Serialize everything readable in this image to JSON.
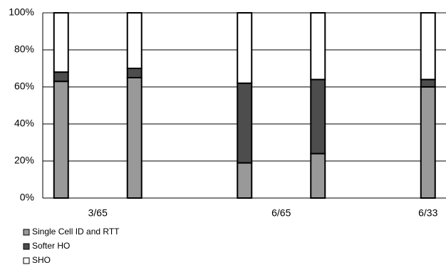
{
  "chart_data": {
    "type": "stacked_bar",
    "categories": [
      null,
      "3/65",
      null,
      null,
      null,
      null,
      "6/65",
      null,
      null,
      null,
      "6/33"
    ],
    "series": [
      {
        "name": "Single Cell ID and RTT",
        "color": "#999999",
        "values": [
          63,
          null,
          65,
          null,
          null,
          19,
          null,
          24,
          null,
          null,
          60
        ]
      },
      {
        "name": "Softer HO",
        "color": "#4d4d4d",
        "values": [
          5,
          null,
          5,
          null,
          null,
          43,
          null,
          40,
          null,
          null,
          4
        ]
      },
      {
        "name": "SHO",
        "color": "#ffffff",
        "values": [
          32,
          null,
          30,
          null,
          null,
          38,
          null,
          36,
          null,
          null,
          36
        ]
      }
    ],
    "ylim": [
      0,
      100
    ],
    "yticks": [
      {
        "value": 0,
        "label": "0%"
      },
      {
        "value": 20,
        "label": "20%"
      },
      {
        "value": 40,
        "label": "40%"
      },
      {
        "value": 60,
        "label": "60%"
      },
      {
        "value": 80,
        "label": "80%"
      },
      {
        "value": 100,
        "label": "100%"
      }
    ],
    "grid": true,
    "legend": "bottom-left"
  }
}
